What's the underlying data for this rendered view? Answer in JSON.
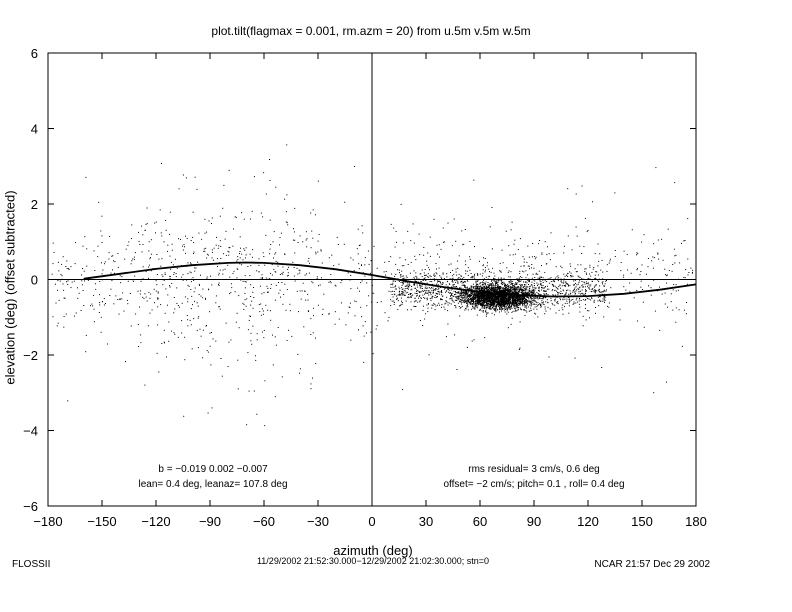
{
  "chart_data": {
    "type": "scatter",
    "title": "plot.tilt(flagmax = 0.001, rm.azm = 20) from u.5m v.5m w.5m",
    "xlabel": "azimuth (deg)",
    "ylabel": "elevation (deg)  (offset subtracted)",
    "xlim": [
      -180,
      180
    ],
    "ylim": [
      -6,
      6
    ],
    "x_ticks": [
      "−180",
      "−150",
      "−120",
      "−90",
      "−60",
      "−30",
      "0",
      "30",
      "60",
      "90",
      "120",
      "150",
      "180"
    ],
    "y_ticks": [
      "−6",
      "−4",
      "−2",
      "0",
      "2",
      "4",
      "6"
    ],
    "grid": false,
    "reference_lines": {
      "horizontal_y": 0,
      "vertical_x": 0
    },
    "series": [
      {
        "kind": "scatter-points",
        "density_center": [
          70,
          -0.45
        ],
        "note_y_range": [
          -4.2,
          5.0
        ]
      },
      {
        "kind": "fitted-curve",
        "x": [
          -160,
          -140,
          -120,
          -100,
          -80,
          -70,
          -60,
          -40,
          -20,
          0,
          20,
          40,
          60,
          80,
          100,
          120,
          140,
          160,
          180
        ],
        "y": [
          0.02,
          0.15,
          0.28,
          0.38,
          0.44,
          0.45,
          0.44,
          0.38,
          0.27,
          0.12,
          -0.05,
          -0.2,
          -0.33,
          -0.41,
          -0.45,
          -0.44,
          -0.38,
          -0.27,
          -0.13
        ]
      }
    ],
    "annotations": {
      "left_line1": "b = −0.019  0.002 −0.007",
      "left_line2": "lean= 0.4 deg, leanaz= 107.8 deg",
      "right_line1": "rms residual= 3 cm/s, 0.6 deg",
      "right_line2": "offset= −2 cm/s; pitch= 0.1 , roll= 0.4 deg"
    }
  },
  "footer": {
    "left": "FLOSSII",
    "center": "11/29/2002 21:52:30.000−12/29/2002 21:02:30.000; stn=0",
    "right": "NCAR 21:57 Dec 29 2002"
  }
}
